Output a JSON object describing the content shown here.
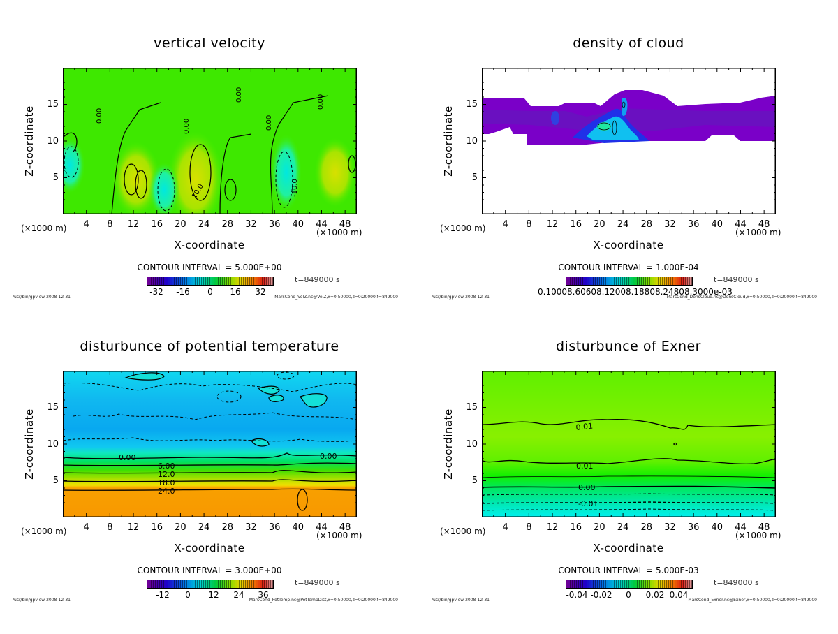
{
  "common": {
    "ylabel": "Z-coordinate",
    "xlabel": "X-coordinate",
    "x_unit": "(×1000 m)",
    "x_ticks": [
      "4",
      "8",
      "12",
      "16",
      "20",
      "24",
      "28",
      "32",
      "36",
      "40",
      "44",
      "48"
    ],
    "y_ticks": [
      "15",
      "10",
      "5"
    ],
    "time": "t=849000 s",
    "footer_left": "/usr/bin/gpview  2008-12-31"
  },
  "chart_data": [
    {
      "type": "heatmap",
      "title": "vertical velocity",
      "xlabel": "X-coordinate",
      "ylabel": "Z-coordinate",
      "xlim": [
        0,
        50
      ],
      "ylim": [
        0,
        20
      ],
      "contour_interval": "CONTOUR INTERVAL = 5.000E+00",
      "contour_labels": [
        "0.00",
        "0.00",
        "0.00",
        "0.00",
        "0.00",
        "10.0",
        "-10.0"
      ],
      "colorbar_ticks": [
        "-32",
        "-16",
        "0",
        "16",
        "32"
      ],
      "colorbar_range": [
        -40,
        40
      ],
      "footer_right": "MarsCond_VelZ.nc@VelZ,x=0:50000,z=0:20000,t=849000"
    },
    {
      "type": "heatmap",
      "title": "density of cloud",
      "xlabel": "X-coordinate",
      "ylabel": "Z-coordinate",
      "xlim": [
        0,
        50
      ],
      "ylim": [
        0,
        20
      ],
      "contour_interval": "CONTOUR INTERVAL = 1.000E-04",
      "colorbar_ticks_text": "0.10008.60608.12008.18808.24808.3000e-03",
      "footer_right": "MarsCond_DensCloud.nc@DensCloud,x=0:50000,z=0:20000,t=849000"
    },
    {
      "type": "heatmap",
      "title": "disturbunce of potential temperature",
      "xlabel": "X-coordinate",
      "ylabel": "Z-coordinate",
      "xlim": [
        0,
        50
      ],
      "ylim": [
        0,
        20
      ],
      "contour_interval": "CONTOUR INTERVAL = 3.000E+00",
      "contour_labels": [
        "0.00",
        "6.00",
        "12.0",
        "18.0",
        "24.0",
        "0.00"
      ],
      "colorbar_ticks": [
        "-12",
        "0",
        "12",
        "24",
        "36"
      ],
      "colorbar_range": [
        -20,
        40
      ],
      "footer_right": "MarsCond_PotTemp.nc@PotTempDist,x=0:50000,z=0:20000,t=849000"
    },
    {
      "type": "heatmap",
      "title": "disturbunce of Exner",
      "xlabel": "X-coordinate",
      "ylabel": "Z-coordinate",
      "xlim": [
        0,
        50
      ],
      "ylim": [
        0,
        20
      ],
      "contour_interval": "CONTOUR INTERVAL = 5.000E-03",
      "contour_labels": [
        "0.01",
        "0.01",
        "0.00",
        "-0.01"
      ],
      "colorbar_ticks": [
        "-0.04",
        "-0.02",
        "0",
        "0.02",
        "0.04"
      ],
      "colorbar_range": [
        -0.05,
        0.05
      ],
      "footer_right": "MarsCond_Exner.nc@Exner,x=0:50000,z=0:20000,t=849000"
    }
  ]
}
